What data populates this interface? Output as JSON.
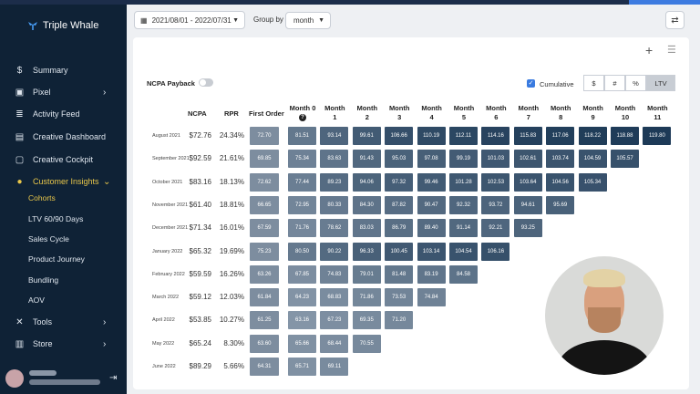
{
  "brand": {
    "name": "Triple Whale"
  },
  "sidebar": {
    "items": [
      {
        "name": "summary",
        "label": "Summary",
        "icon": "dollar-icon"
      },
      {
        "name": "pixel",
        "label": "Pixel",
        "icon": "pixel-icon",
        "chevron": "›"
      },
      {
        "name": "activity-feed",
        "label": "Activity Feed",
        "icon": "feed-icon"
      },
      {
        "name": "creative-dashboard",
        "label": "Creative Dashboard",
        "icon": "dashboard-icon"
      },
      {
        "name": "creative-cockpit",
        "label": "Creative Cockpit",
        "icon": "cockpit-icon"
      },
      {
        "name": "customer-insights",
        "label": "Customer Insights",
        "icon": "user-icon",
        "chevron": "⌄"
      }
    ],
    "subitems": [
      "Cohorts",
      "LTV 60/90 Days",
      "Sales Cycle",
      "Product Journey",
      "Bundling",
      "AOV"
    ],
    "bottom": [
      {
        "name": "tools",
        "label": "Tools",
        "icon": "tools-icon",
        "chevron": "›"
      },
      {
        "name": "store",
        "label": "Store",
        "icon": "store-icon",
        "chevron": "›"
      }
    ]
  },
  "toolbar": {
    "date_range": "2021/08/01 - 2022/07/31",
    "group_by_label": "Group by",
    "group_by_value": "month"
  },
  "controls": {
    "payback_label": "NCPA Payback",
    "cumulative_label": "Cumulative",
    "segments": [
      "$",
      "#",
      "%",
      "LTV"
    ],
    "active_segment": "LTV"
  },
  "table": {
    "headers": {
      "ncpa": "NCPA",
      "rpr": "RPR",
      "first_order": "First Order",
      "months": [
        "Month 0",
        "Month 1",
        "Month 2",
        "Month 3",
        "Month 4",
        "Month 5",
        "Month 6",
        "Month 7",
        "Month 8",
        "Month 9",
        "Month 10",
        "Month 11"
      ]
    },
    "rows": [
      {
        "cohort": "August 2021",
        "ncpa": "$72.76",
        "rpr": "24.34%",
        "first": "72.70",
        "months": [
          "81.51",
          "93.14",
          "99.61",
          "106.66",
          "110.19",
          "112.11",
          "114.16",
          "115.83",
          "117.06",
          "118.22",
          "118.88",
          "119.80"
        ]
      },
      {
        "cohort": "September 2021",
        "ncpa": "$92.59",
        "rpr": "21.61%",
        "first": "69.85",
        "months": [
          "75.34",
          "83.63",
          "91.43",
          "95.03",
          "97.08",
          "99.19",
          "101.03",
          "102.61",
          "103.74",
          "104.59",
          "105.57"
        ]
      },
      {
        "cohort": "October 2021",
        "ncpa": "$83.16",
        "rpr": "18.13%",
        "first": "72.62",
        "months": [
          "77.44",
          "89.23",
          "94.06",
          "97.32",
          "99.46",
          "101.28",
          "102.53",
          "103.64",
          "104.56",
          "105.34"
        ]
      },
      {
        "cohort": "November 2021",
        "ncpa": "$61.40",
        "rpr": "18.81%",
        "first": "66.65",
        "months": [
          "72.95",
          "80.33",
          "84.30",
          "87.82",
          "90.47",
          "92.32",
          "93.72",
          "94.61",
          "95.69"
        ]
      },
      {
        "cohort": "December 2021",
        "ncpa": "$71.34",
        "rpr": "16.01%",
        "first": "67.59",
        "months": [
          "71.76",
          "78.62",
          "83.03",
          "86.79",
          "89.40",
          "91.14",
          "92.21",
          "93.25"
        ]
      },
      {
        "cohort": "January 2022",
        "ncpa": "$65.32",
        "rpr": "19.69%",
        "first": "75.23",
        "months": [
          "80.50",
          "90.22",
          "96.33",
          "100.45",
          "103.14",
          "104.54",
          "106.16"
        ]
      },
      {
        "cohort": "February 2022",
        "ncpa": "$59.59",
        "rpr": "16.26%",
        "first": "63.26",
        "months": [
          "67.85",
          "74.83",
          "79.01",
          "81.48",
          "83.19",
          "84.58"
        ]
      },
      {
        "cohort": "March 2022",
        "ncpa": "$59.12",
        "rpr": "12.03%",
        "first": "61.84",
        "months": [
          "64.23",
          "68.83",
          "71.86",
          "73.53",
          "74.84"
        ]
      },
      {
        "cohort": "April 2022",
        "ncpa": "$53.85",
        "rpr": "10.27%",
        "first": "61.25",
        "months": [
          "63.16",
          "67.23",
          "69.35",
          "71.20"
        ]
      },
      {
        "cohort": "May 2022",
        "ncpa": "$65.24",
        "rpr": "8.30%",
        "first": "63.60",
        "months": [
          "65.66",
          "68.44",
          "70.55"
        ]
      },
      {
        "cohort": "June 2022",
        "ncpa": "$89.29",
        "rpr": "5.66%",
        "first": "64.31",
        "months": [
          "65.71",
          "69.11"
        ]
      }
    ]
  },
  "colors": {
    "sidebar_bg": "#0f2236",
    "active_accent": "#e8c64a",
    "cell_low": "#8a9aab",
    "cell_high": "#1d3a57",
    "checkbox_blue": "#3a7be0"
  }
}
